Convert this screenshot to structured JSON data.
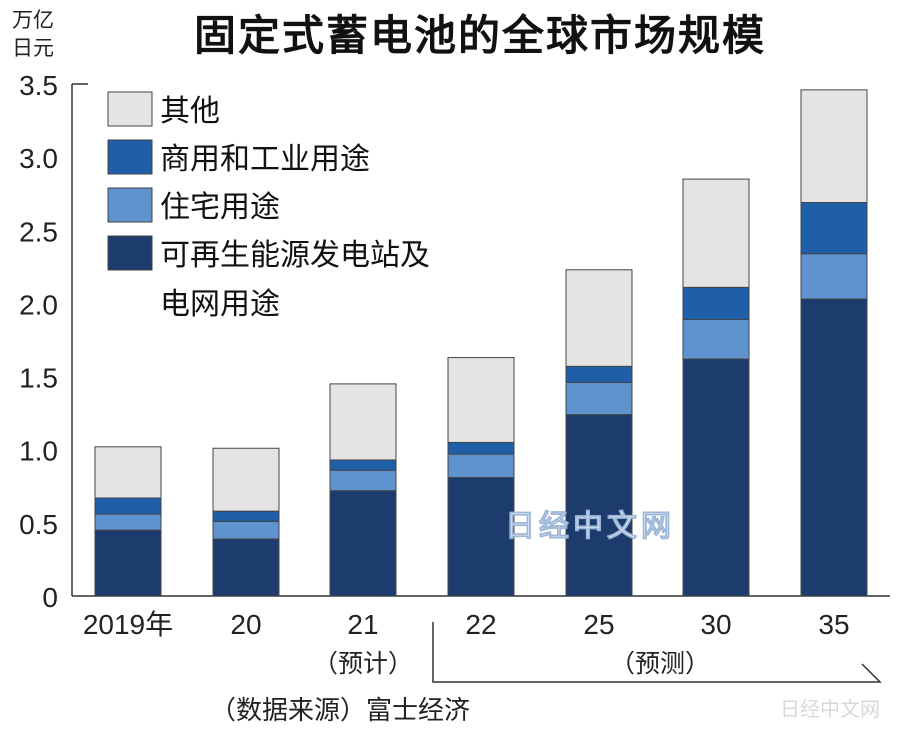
{
  "chart_data": {
    "type": "bar",
    "stacked": true,
    "title": "固定式蓄电池的全球市场规模",
    "ylabel_line1": "万亿",
    "ylabel_line2": "日元",
    "ylim": [
      0,
      3.5
    ],
    "yticks": [
      "0",
      "0.5",
      "1.0",
      "1.5",
      "2.0",
      "2.5",
      "3.0",
      "3.5"
    ],
    "grid": false,
    "legend_placement": "top-left",
    "categories": [
      "2019年",
      "20",
      "21",
      "22",
      "25",
      "30",
      "35"
    ],
    "series": [
      {
        "name": "可再生能源发电站及电网用途",
        "color": "#1c3c6e",
        "values": [
          0.45,
          0.39,
          0.72,
          0.81,
          1.24,
          1.62,
          2.03
        ]
      },
      {
        "name": "住宅用途",
        "color": "#5e93cf",
        "values": [
          0.11,
          0.12,
          0.14,
          0.16,
          0.22,
          0.27,
          0.31
        ]
      },
      {
        "name": "商用和工业用途",
        "color": "#1f5ea8",
        "values": [
          0.11,
          0.07,
          0.07,
          0.08,
          0.11,
          0.22,
          0.35
        ]
      },
      {
        "name": "其他",
        "color": "#e4e4e4",
        "values": [
          0.35,
          0.43,
          0.52,
          0.58,
          0.66,
          0.74,
          0.77
        ]
      }
    ],
    "annotations": {
      "estimate": "（预计）",
      "forecast": "（预测）"
    }
  },
  "source": "（数据来源）富士经济",
  "watermark": "日经中文网"
}
